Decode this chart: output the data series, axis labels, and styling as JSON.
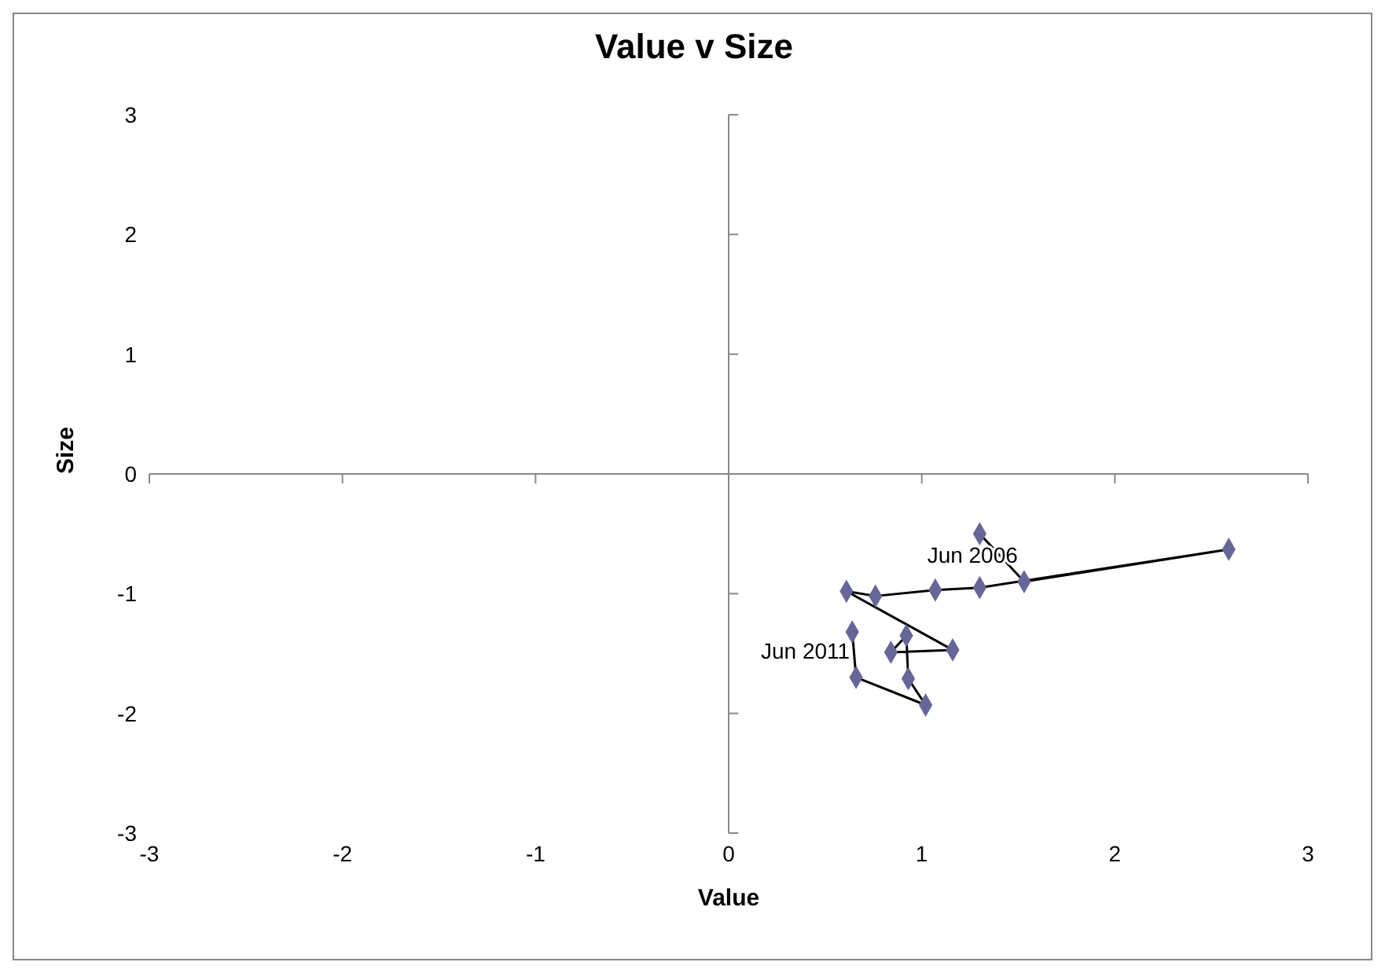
{
  "chart_data": {
    "type": "line",
    "title": "Value v Size",
    "xlabel": "Value",
    "ylabel": "Size",
    "x": [
      1.3,
      1.53,
      2.59,
      1.3,
      1.07,
      0.76,
      0.61,
      1.16,
      0.84,
      0.92,
      0.93,
      1.02,
      0.66,
      0.64
    ],
    "series": [
      {
        "color": "#666699",
        "values": [
          -0.5,
          -0.9,
          -0.63,
          -0.95,
          -0.97,
          -1.02,
          -0.98,
          -1.47,
          -1.49,
          -1.35,
          -1.71,
          -1.93,
          -1.7,
          -1.32
        ]
      }
    ],
    "xlim": [
      -3,
      3
    ],
    "xticks": [
      -3,
      -2,
      -1,
      0,
      1,
      2,
      3
    ],
    "ylim": [
      -3,
      3
    ],
    "yticks": [
      -3,
      -2,
      -1,
      0,
      1,
      2,
      3
    ],
    "marker": "diamond",
    "line_style": "solid",
    "legend": false,
    "annotations": [
      {
        "text": "Jun 2006",
        "x": 1.53,
        "y": -0.9
      },
      {
        "text": "Jun 2011",
        "x": 0.66,
        "y": -1.7
      }
    ]
  }
}
